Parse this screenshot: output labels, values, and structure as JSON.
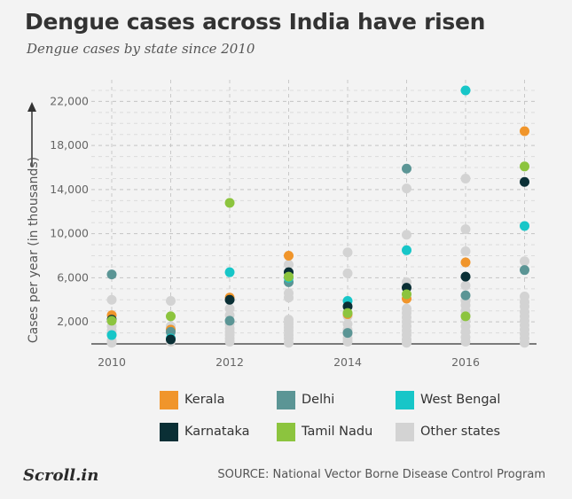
{
  "title": "Dengue cases across India have risen",
  "subtitle": "Dengue cases by state since 2010",
  "source": "SOURCE: National Vector Borne Disease Control Program",
  "logo": "Scroll.in",
  "chart_data": {
    "type": "scatter",
    "ylabel": "Cases per year (in thousands)",
    "xlabel": "",
    "x_years": [
      2010,
      2011,
      2012,
      2013,
      2014,
      2015,
      2016,
      2017
    ],
    "x_tick_labels": [
      "2010",
      "2012",
      "2014",
      "2016"
    ],
    "x_tick_values": [
      2010,
      2012,
      2014,
      2016
    ],
    "ylim": [
      0,
      23000
    ],
    "y_tick_values": [
      2000,
      6000,
      10000,
      14000,
      18000,
      22000
    ],
    "y_tick_labels": [
      "2,000",
      "6,000",
      "10,000",
      "14,000",
      "18,000",
      "22,000"
    ],
    "grid": true,
    "series": [
      {
        "name": "Kerala",
        "color": "#f0952b",
        "points": [
          [
            2010,
            2600
          ],
          [
            2011,
            1300
          ],
          [
            2012,
            4200
          ],
          [
            2013,
            8000
          ],
          [
            2014,
            2700
          ],
          [
            2015,
            4100
          ],
          [
            2016,
            7400
          ],
          [
            2017,
            19300
          ]
        ]
      },
      {
        "name": "Delhi",
        "color": "#5b9595",
        "points": [
          [
            2010,
            6300
          ],
          [
            2011,
            1100
          ],
          [
            2012,
            2100
          ],
          [
            2013,
            5600
          ],
          [
            2014,
            1000
          ],
          [
            2015,
            15900
          ],
          [
            2016,
            4400
          ],
          [
            2017,
            6700
          ]
        ]
      },
      {
        "name": "West Bengal",
        "color": "#17c6c8",
        "points": [
          [
            2010,
            800
          ],
          [
            2011,
            500
          ],
          [
            2012,
            6500
          ],
          [
            2013,
            6000
          ],
          [
            2014,
            3900
          ],
          [
            2015,
            8500
          ],
          [
            2016,
            23000
          ],
          [
            2017,
            10700
          ]
        ]
      },
      {
        "name": "Karnataka",
        "color": "#0a2f35",
        "points": [
          [
            2010,
            2200
          ],
          [
            2011,
            400
          ],
          [
            2012,
            4000
          ],
          [
            2013,
            6500
          ],
          [
            2014,
            3400
          ],
          [
            2015,
            5100
          ],
          [
            2016,
            6100
          ],
          [
            2017,
            14700
          ]
        ]
      },
      {
        "name": "Tamil Nadu",
        "color": "#8cc43e",
        "points": [
          [
            2010,
            2100
          ],
          [
            2011,
            2500
          ],
          [
            2012,
            12800
          ],
          [
            2013,
            6100
          ],
          [
            2014,
            2800
          ],
          [
            2015,
            4500
          ],
          [
            2016,
            2500
          ],
          [
            2017,
            16100
          ]
        ]
      },
      {
        "name": "Other states",
        "color": "#d3d3d3",
        "points": [
          [
            2010,
            4000
          ],
          [
            2010,
            1600
          ],
          [
            2010,
            1200
          ],
          [
            2010,
            900
          ],
          [
            2010,
            300
          ],
          [
            2010,
            100
          ],
          [
            2011,
            3900
          ],
          [
            2011,
            1600
          ],
          [
            2011,
            1000
          ],
          [
            2011,
            200
          ],
          [
            2012,
            3200
          ],
          [
            2012,
            2600
          ],
          [
            2012,
            1800
          ],
          [
            2012,
            1400
          ],
          [
            2012,
            1100
          ],
          [
            2012,
            800
          ],
          [
            2012,
            500
          ],
          [
            2012,
            200
          ],
          [
            2013,
            7200
          ],
          [
            2013,
            4600
          ],
          [
            2013,
            4200
          ],
          [
            2013,
            2200
          ],
          [
            2013,
            1800
          ],
          [
            2013,
            1500
          ],
          [
            2013,
            1200
          ],
          [
            2013,
            800
          ],
          [
            2013,
            500
          ],
          [
            2013,
            100
          ],
          [
            2014,
            8300
          ],
          [
            2014,
            6400
          ],
          [
            2014,
            2500
          ],
          [
            2014,
            1800
          ],
          [
            2014,
            1300
          ],
          [
            2014,
            900
          ],
          [
            2014,
            500
          ],
          [
            2014,
            200
          ],
          [
            2015,
            14100
          ],
          [
            2015,
            9900
          ],
          [
            2015,
            5600
          ],
          [
            2015,
            3200
          ],
          [
            2015,
            2800
          ],
          [
            2015,
            2400
          ],
          [
            2015,
            2000
          ],
          [
            2015,
            1600
          ],
          [
            2015,
            1200
          ],
          [
            2015,
            800
          ],
          [
            2015,
            400
          ],
          [
            2015,
            100
          ],
          [
            2016,
            15000
          ],
          [
            2016,
            10400
          ],
          [
            2016,
            8400
          ],
          [
            2016,
            5300
          ],
          [
            2016,
            3900
          ],
          [
            2016,
            3500
          ],
          [
            2016,
            3000
          ],
          [
            2016,
            2600
          ],
          [
            2016,
            2100
          ],
          [
            2016,
            1600
          ],
          [
            2016,
            1100
          ],
          [
            2016,
            600
          ],
          [
            2016,
            200
          ],
          [
            2017,
            7500
          ],
          [
            2017,
            4300
          ],
          [
            2017,
            3800
          ],
          [
            2017,
            3400
          ],
          [
            2017,
            2900
          ],
          [
            2017,
            2500
          ],
          [
            2017,
            2100
          ],
          [
            2017,
            1700
          ],
          [
            2017,
            1300
          ],
          [
            2017,
            900
          ],
          [
            2017,
            500
          ],
          [
            2017,
            100
          ]
        ]
      }
    ]
  }
}
